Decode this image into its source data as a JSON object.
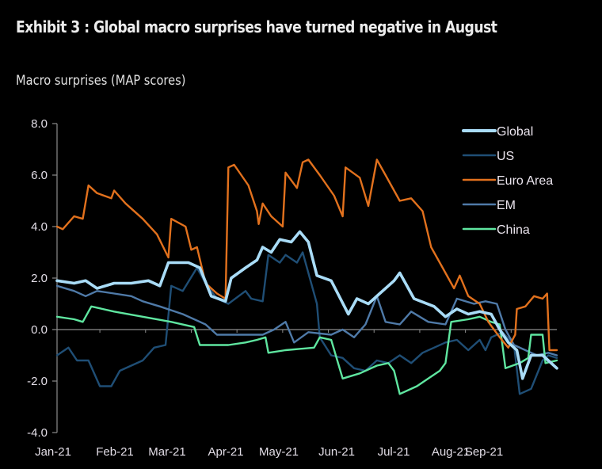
{
  "header": {
    "title": "Exhibit 3 : Global macro surprises have turned negative in August",
    "subtitle": "Macro surprises (MAP scores)"
  },
  "chart_data": {
    "type": "line",
    "title": "Exhibit 3 : Global macro surprises have turned negative in August",
    "ylabel": "Macro surprises (MAP scores)",
    "xlabel": "",
    "x_unit": "months since 1-Jan-2021",
    "xlim": [
      0,
      8.75
    ],
    "ylim": [
      -4,
      8
    ],
    "yticks": [
      8.0,
      6.0,
      4.0,
      2.0,
      0.0,
      -2.0,
      -4.0
    ],
    "ytick_labels": [
      "8.0",
      "6.0",
      "4.0",
      "2.0",
      "0.0",
      "-2.0",
      "-4.0"
    ],
    "xtick_labels": [
      "Jan-21",
      "Feb-21",
      "Mar-21",
      "Apr-21",
      "May-21",
      "Jun-21",
      "Jul-21",
      "Aug-21",
      "Sep-21"
    ],
    "grid": false,
    "legend_position": "top-right",
    "series": [
      {
        "name": "Global",
        "color": "#a9dcf7",
        "x": [
          0,
          0.3,
          0.5,
          0.7,
          1.0,
          1.3,
          1.6,
          1.8,
          1.95,
          2.3,
          2.5,
          2.7,
          2.95,
          3.05,
          3.3,
          3.5,
          3.6,
          3.75,
          3.9,
          4.1,
          4.25,
          4.4,
          4.55,
          4.8,
          5.1,
          5.25,
          5.45,
          5.65,
          5.8,
          5.9,
          6.0,
          6.25,
          6.6,
          6.8,
          7.0,
          7.2,
          7.4,
          7.6,
          7.75,
          7.9,
          8.05,
          8.15,
          8.3,
          8.5,
          8.6,
          8.75
        ],
        "y": [
          1.9,
          1.8,
          1.9,
          1.6,
          1.8,
          1.8,
          1.9,
          1.7,
          2.6,
          2.6,
          2.4,
          1.3,
          1.1,
          2.0,
          2.4,
          2.7,
          3.2,
          3.0,
          3.5,
          3.4,
          3.8,
          3.4,
          2.1,
          1.9,
          0.6,
          1.2,
          1.0,
          1.4,
          1.7,
          1.9,
          2.2,
          1.2,
          0.9,
          0.5,
          0.8,
          0.6,
          0.7,
          0.6,
          0.0,
          -0.5,
          -0.8,
          -1.9,
          -1.0,
          -1.0,
          -1.2,
          -1.5
        ]
      },
      {
        "name": "US",
        "color": "#1f4e75",
        "x": [
          0,
          0.2,
          0.35,
          0.55,
          0.75,
          0.95,
          1.1,
          1.3,
          1.5,
          1.7,
          1.9,
          2.0,
          2.2,
          2.45,
          2.6,
          2.8,
          3.0,
          3.3,
          3.4,
          3.6,
          3.7,
          3.9,
          4.0,
          4.2,
          4.3,
          4.55,
          4.6,
          4.8,
          5.0,
          5.2,
          5.4,
          5.6,
          5.8,
          6.0,
          6.2,
          6.4,
          6.6,
          6.8,
          7.0,
          7.2,
          7.4,
          7.5,
          7.6,
          7.8,
          8.0,
          8.1,
          8.3,
          8.5,
          8.6,
          8.75
        ],
        "y": [
          -1.0,
          -0.7,
          -1.2,
          -1.2,
          -2.2,
          -2.2,
          -1.6,
          -1.4,
          -1.2,
          -0.7,
          -0.6,
          1.7,
          1.5,
          2.4,
          1.8,
          1.2,
          1.0,
          1.5,
          1.2,
          1.1,
          2.9,
          2.6,
          2.9,
          2.6,
          3.0,
          1.0,
          -0.3,
          -1.0,
          -1.1,
          -1.5,
          -1.6,
          -1.2,
          -1.3,
          -1.0,
          -1.3,
          -0.9,
          -0.7,
          -0.5,
          -0.4,
          -0.8,
          -0.4,
          -0.8,
          -0.3,
          -0.1,
          -0.6,
          -2.5,
          -2.3,
          -1.2,
          -1.0,
          -1.1
        ]
      },
      {
        "name": "Euro Area",
        "color": "#e2711d",
        "x": [
          0,
          0.1,
          0.3,
          0.45,
          0.55,
          0.7,
          0.95,
          1.0,
          1.2,
          1.5,
          1.75,
          1.95,
          2.0,
          2.25,
          2.35,
          2.45,
          2.6,
          2.8,
          2.95,
          3.0,
          3.1,
          3.35,
          3.5,
          3.53,
          3.6,
          3.75,
          3.95,
          4.0,
          4.2,
          4.3,
          4.4,
          4.6,
          4.85,
          5.0,
          5.05,
          5.3,
          5.45,
          5.6,
          5.75,
          6.0,
          6.2,
          6.4,
          6.55,
          6.75,
          6.95,
          7.05,
          7.2,
          7.4,
          7.55,
          7.75,
          7.9,
          8.02,
          8.05,
          8.2,
          8.35,
          8.5,
          8.58,
          8.62,
          8.75
        ],
        "y": [
          4.0,
          3.9,
          4.4,
          4.3,
          5.6,
          5.3,
          5.1,
          5.4,
          4.9,
          4.3,
          3.7,
          2.8,
          4.3,
          4.0,
          3.1,
          3.2,
          1.8,
          1.4,
          1.2,
          6.3,
          6.4,
          5.6,
          4.6,
          4.1,
          4.9,
          4.4,
          4.0,
          6.1,
          5.5,
          6.5,
          6.6,
          6.0,
          5.2,
          4.4,
          6.3,
          5.9,
          4.8,
          6.6,
          6.0,
          5.0,
          5.1,
          4.6,
          3.2,
          2.4,
          1.6,
          2.1,
          1.3,
          1.0,
          0.3,
          -0.3,
          -0.7,
          -0.2,
          0.8,
          0.9,
          1.3,
          1.2,
          1.4,
          -0.8,
          -0.8
        ]
      },
      {
        "name": "EM",
        "color": "#4f7aa8",
        "x": [
          0,
          0.3,
          0.5,
          0.7,
          1.0,
          1.3,
          1.5,
          1.8,
          2.2,
          2.6,
          2.8,
          3.2,
          3.6,
          3.8,
          4.0,
          4.15,
          4.4,
          4.8,
          5.0,
          5.2,
          5.4,
          5.6,
          5.75,
          6.0,
          6.2,
          6.5,
          6.8,
          7.0,
          7.3,
          7.5,
          7.7,
          7.85,
          8.0,
          8.2,
          8.4,
          8.6,
          8.75
        ],
        "y": [
          1.7,
          1.5,
          1.3,
          1.5,
          1.4,
          1.3,
          1.1,
          0.9,
          0.6,
          0.2,
          -0.2,
          -0.2,
          -0.2,
          0.0,
          0.3,
          -0.5,
          -0.1,
          -0.2,
          0.0,
          -0.3,
          0.2,
          1.3,
          0.3,
          0.2,
          0.7,
          0.3,
          0.2,
          1.2,
          1.0,
          1.1,
          1.0,
          0.0,
          -0.6,
          -0.8,
          -1.0,
          -0.9,
          -1.0
        ]
      },
      {
        "name": "China",
        "color": "#5fe6a0",
        "x": [
          0,
          0.3,
          0.45,
          0.6,
          1.0,
          1.5,
          2.0,
          2.4,
          2.5,
          3.0,
          3.3,
          3.5,
          3.65,
          3.7,
          4.0,
          4.5,
          4.6,
          4.8,
          5.0,
          5.3,
          5.6,
          5.8,
          5.9,
          6.0,
          6.3,
          6.5,
          6.7,
          6.8,
          6.9,
          7.2,
          7.4,
          7.6,
          7.75,
          7.85,
          8.1,
          8.25,
          8.3,
          8.5,
          8.55,
          8.75
        ],
        "y": [
          0.5,
          0.4,
          0.3,
          0.9,
          0.7,
          0.5,
          0.3,
          0.1,
          -0.6,
          -0.6,
          -0.5,
          -0.4,
          -0.3,
          -0.9,
          -0.8,
          -0.7,
          -0.3,
          -0.4,
          -1.9,
          -1.7,
          -1.4,
          -1.3,
          -1.6,
          -2.5,
          -2.2,
          -1.9,
          -1.6,
          -1.3,
          0.3,
          0.4,
          0.5,
          0.3,
          0.2,
          -1.5,
          -1.3,
          -1.1,
          -0.2,
          -0.2,
          -1.3,
          -1.2
        ]
      }
    ],
    "draw_order": [
      "US",
      "EM",
      "China",
      "Euro Area",
      "Global"
    ]
  }
}
